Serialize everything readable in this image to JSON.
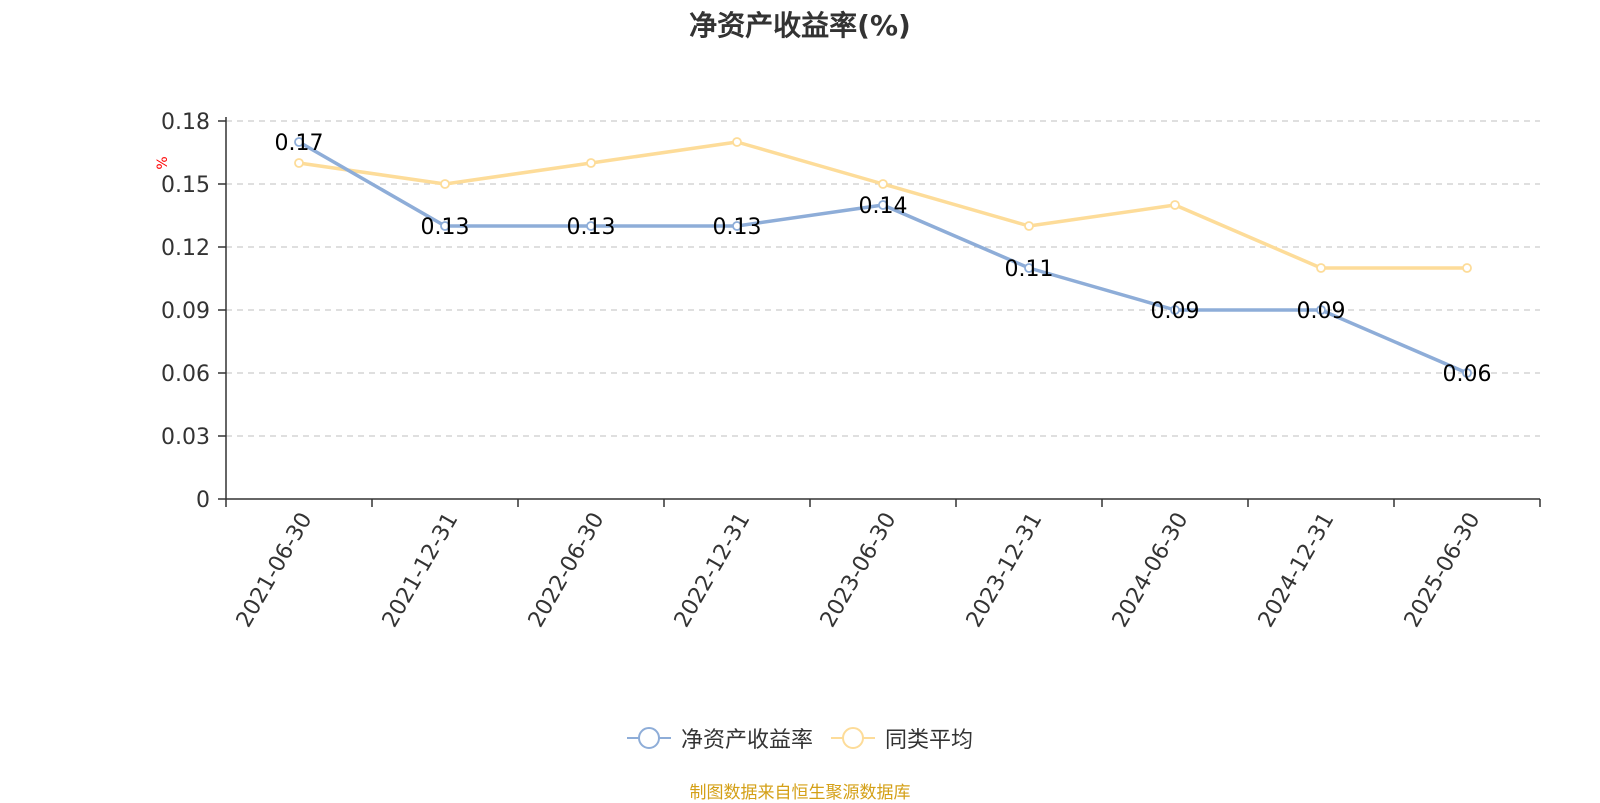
{
  "chart_data": {
    "type": "line",
    "title": "净资产收益率(%)",
    "ylabel": "%",
    "ylim": [
      0,
      0.18
    ],
    "yticks": [
      "0",
      "0.03",
      "0.06",
      "0.09",
      "0.12",
      "0.15",
      "0.18"
    ],
    "categories": [
      "2021-06-30",
      "2021-12-31",
      "2022-06-30",
      "2022-12-31",
      "2023-06-30",
      "2023-12-31",
      "2024-06-30",
      "2024-12-31",
      "2025-06-30"
    ],
    "series": [
      {
        "name": "净资产收益率",
        "color": "#8eadd8",
        "values": [
          0.17,
          0.13,
          0.13,
          0.13,
          0.14,
          0.11,
          0.09,
          0.09,
          0.06
        ],
        "data_labels": true
      },
      {
        "name": "同类平均",
        "color": "#fddc99",
        "values": [
          0.16,
          0.15,
          0.16,
          0.17,
          0.15,
          0.13,
          0.14,
          0.11,
          0.11
        ],
        "data_labels": false
      }
    ],
    "grid": true,
    "legend_position": "bottom-center"
  },
  "source_note": "制图数据来自恒生聚源数据库",
  "colors": {
    "axis": "#333333",
    "grid": "#cccccc",
    "ylabel": "#ff0000",
    "source_note": "#d4a017"
  }
}
